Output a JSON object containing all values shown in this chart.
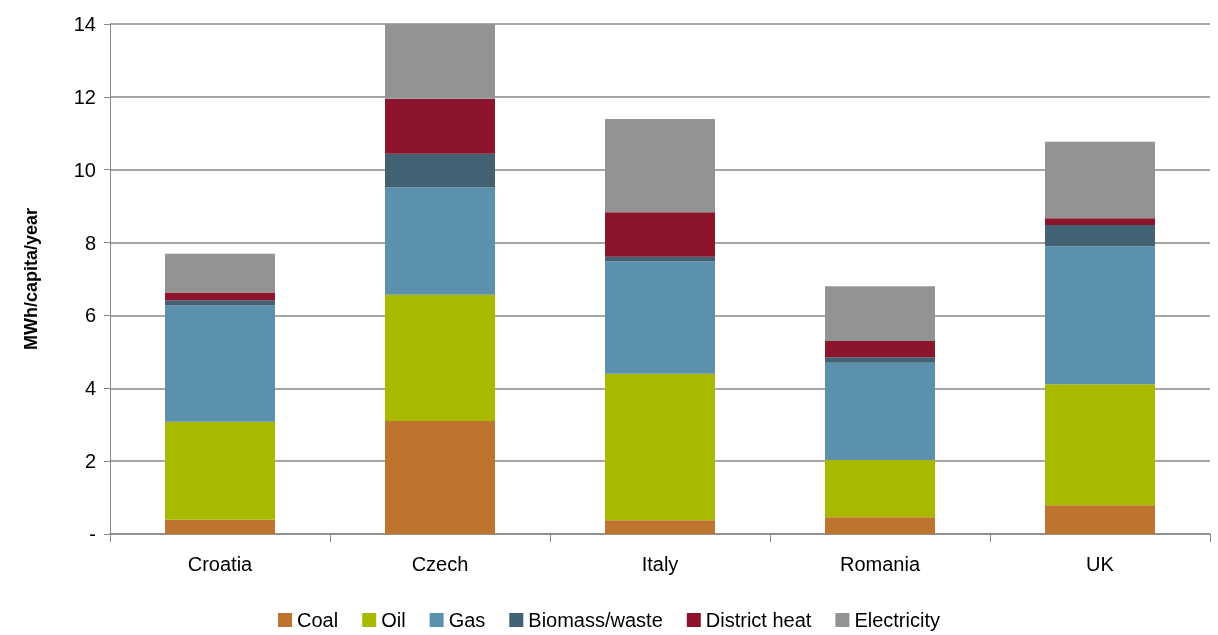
{
  "chart_data": {
    "type": "bar",
    "stacked": true,
    "ylabel": "MWh/capita/year",
    "categories": [
      "Croatia",
      "Czech",
      "Italy",
      "Romania",
      "UK"
    ],
    "series": [
      {
        "name": "Coal",
        "color": "#be742e",
        "values": [
          0.39,
          3.1,
          0.38,
          0.46,
          0.79
        ]
      },
      {
        "name": "Oil",
        "color": "#a9b900",
        "values": [
          2.69,
          3.47,
          4.02,
          1.57,
          3.32
        ]
      },
      {
        "name": "Gas",
        "color": "#5b91ad",
        "values": [
          3.19,
          2.95,
          3.09,
          2.67,
          3.79
        ]
      },
      {
        "name": "Biomass/waste",
        "color": "#426274",
        "values": [
          0.15,
          0.92,
          0.12,
          0.15,
          0.58
        ]
      },
      {
        "name": "District heat",
        "color": "#8c152d",
        "values": [
          0.21,
          1.51,
          1.22,
          0.45,
          0.19
        ]
      },
      {
        "name": "Electricity",
        "color": "#939393",
        "values": [
          1.06,
          2.05,
          2.56,
          1.5,
          2.1
        ]
      }
    ],
    "ylim": [
      0,
      14
    ],
    "yticks": [
      {
        "value": 0,
        "label": "-"
      },
      2,
      4,
      6,
      8,
      10,
      12,
      14
    ],
    "grid": "y",
    "legend": "bottom"
  }
}
